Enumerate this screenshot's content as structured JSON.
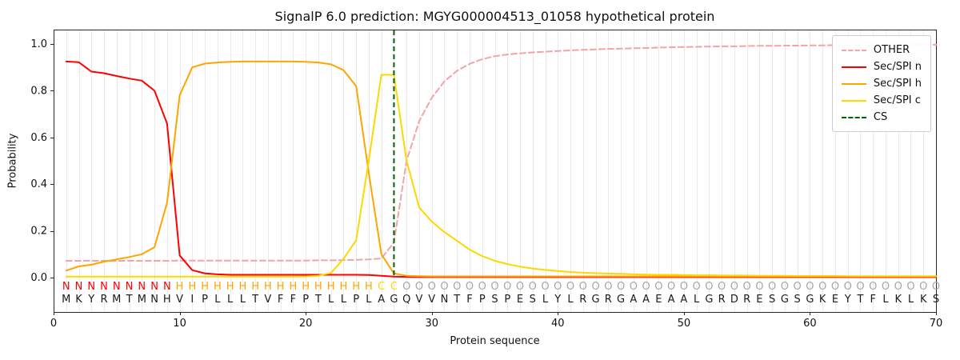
{
  "chart_data": {
    "type": "line",
    "title": "SignalP 6.0 prediction: MGYG000004513_01058 hypothetical protein",
    "xlabel": "Protein sequence",
    "ylabel": "Probability",
    "xlim": [
      0,
      70
    ],
    "ylim": [
      0.0,
      1.0
    ],
    "x_ticks": [
      0,
      10,
      20,
      30,
      40,
      50,
      60,
      70
    ],
    "y_ticks": [
      0.0,
      0.2,
      0.4,
      0.6,
      0.8,
      1.0
    ],
    "grid": "vertical-per-residue",
    "legend_position": "upper right",
    "sequence": "MKYRMTMNHVIPLLLTVFFPTLLPLAGQVVNTFPSPESLYLRGRGAAEAALGRDRESGSGKEYTFLKLKS",
    "regions": "NNNNNNNNNHHHHHHHHHHHHHHHHCCOOOOOOOOOOOOOOOOOOOOOOOOOOOOOOOOOOOOOOOOOOO",
    "region_colors": {
      "N": "#ff0000",
      "H": "#ffa500",
      "C": "#ffd700",
      "O": "#a6a6a6"
    },
    "colors": {
      "grid": "#ebebeb",
      "frame": "#262626",
      "sequence_text": "#1a1a1a"
    },
    "cs_position": 27,
    "series": [
      {
        "name": "OTHER",
        "color": "#f4a3a8",
        "dashed": true,
        "values": [
          0.072,
          0.072,
          0.072,
          0.072,
          0.072,
          0.072,
          0.072,
          0.072,
          0.072,
          0.073,
          0.073,
          0.073,
          0.073,
          0.073,
          0.073,
          0.073,
          0.073,
          0.073,
          0.073,
          0.073,
          0.074,
          0.074,
          0.075,
          0.076,
          0.078,
          0.082,
          0.15,
          0.5,
          0.67,
          0.77,
          0.84,
          0.885,
          0.915,
          0.935,
          0.948,
          0.955,
          0.96,
          0.964,
          0.967,
          0.97,
          0.973,
          0.975,
          0.977,
          0.979,
          0.98,
          0.982,
          0.983,
          0.985,
          0.986,
          0.987,
          0.988,
          0.989,
          0.99,
          0.99,
          0.991,
          0.992,
          0.992,
          0.993,
          0.993,
          0.994,
          0.994,
          0.995,
          0.995,
          0.995,
          0.996,
          0.996,
          0.996,
          0.997,
          0.997,
          0.997
        ]
      },
      {
        "name": "Sec/SPI n",
        "color": "#ff0000",
        "dashed": false,
        "values": [
          0.925,
          0.922,
          0.882,
          0.875,
          0.863,
          0.852,
          0.843,
          0.8,
          0.66,
          0.095,
          0.032,
          0.018,
          0.014,
          0.012,
          0.012,
          0.012,
          0.012,
          0.012,
          0.012,
          0.012,
          0.012,
          0.012,
          0.012,
          0.012,
          0.011,
          0.008,
          0.004,
          0.003,
          0.002,
          0.002,
          0.002,
          0.002,
          0.002,
          0.002,
          0.002,
          0.002,
          0.002,
          0.002,
          0.002,
          0.002,
          0.002,
          0.002,
          0.002,
          0.002,
          0.002,
          0.002,
          0.002,
          0.002,
          0.002,
          0.002,
          0.002,
          0.002,
          0.002,
          0.002,
          0.002,
          0.002,
          0.002,
          0.002,
          0.002,
          0.002,
          0.002,
          0.002,
          0.002,
          0.002,
          0.002,
          0.002,
          0.002,
          0.002,
          0.002,
          0.002
        ]
      },
      {
        "name": "Sec/SPI h",
        "color": "#ffa500",
        "dashed": false,
        "values": [
          0.03,
          0.048,
          0.055,
          0.068,
          0.078,
          0.088,
          0.1,
          0.13,
          0.32,
          0.78,
          0.9,
          0.916,
          0.921,
          0.924,
          0.925,
          0.925,
          0.925,
          0.925,
          0.925,
          0.924,
          0.921,
          0.913,
          0.888,
          0.82,
          0.45,
          0.1,
          0.018,
          0.008,
          0.006,
          0.005,
          0.005,
          0.005,
          0.005,
          0.005,
          0.005,
          0.005,
          0.005,
          0.005,
          0.005,
          0.005,
          0.005,
          0.005,
          0.005,
          0.005,
          0.005,
          0.005,
          0.005,
          0.005,
          0.005,
          0.005,
          0.005,
          0.005,
          0.005,
          0.005,
          0.005,
          0.005,
          0.005,
          0.005,
          0.005,
          0.005,
          0.005,
          0.005,
          0.005,
          0.005,
          0.005,
          0.005,
          0.005,
          0.005,
          0.005,
          0.005
        ]
      },
      {
        "name": "Sec/SPI c",
        "color": "#ffd700",
        "dashed": false,
        "values": [
          0.004,
          0.004,
          0.004,
          0.004,
          0.004,
          0.004,
          0.004,
          0.004,
          0.004,
          0.004,
          0.004,
          0.004,
          0.004,
          0.004,
          0.004,
          0.004,
          0.004,
          0.004,
          0.004,
          0.005,
          0.008,
          0.02,
          0.08,
          0.16,
          0.5,
          0.868,
          0.868,
          0.5,
          0.3,
          0.24,
          0.195,
          0.158,
          0.12,
          0.092,
          0.072,
          0.058,
          0.047,
          0.039,
          0.033,
          0.028,
          0.024,
          0.021,
          0.019,
          0.017,
          0.016,
          0.014,
          0.013,
          0.012,
          0.012,
          0.011,
          0.01,
          0.01,
          0.009,
          0.009,
          0.009,
          0.008,
          0.008,
          0.008,
          0.007,
          0.007,
          0.007,
          0.007,
          0.006,
          0.006,
          0.006,
          0.006,
          0.006,
          0.006,
          0.006,
          0.006
        ]
      },
      {
        "name": "CS",
        "color": "#006400",
        "dashed": true,
        "type": "vline",
        "x": 27
      }
    ]
  }
}
